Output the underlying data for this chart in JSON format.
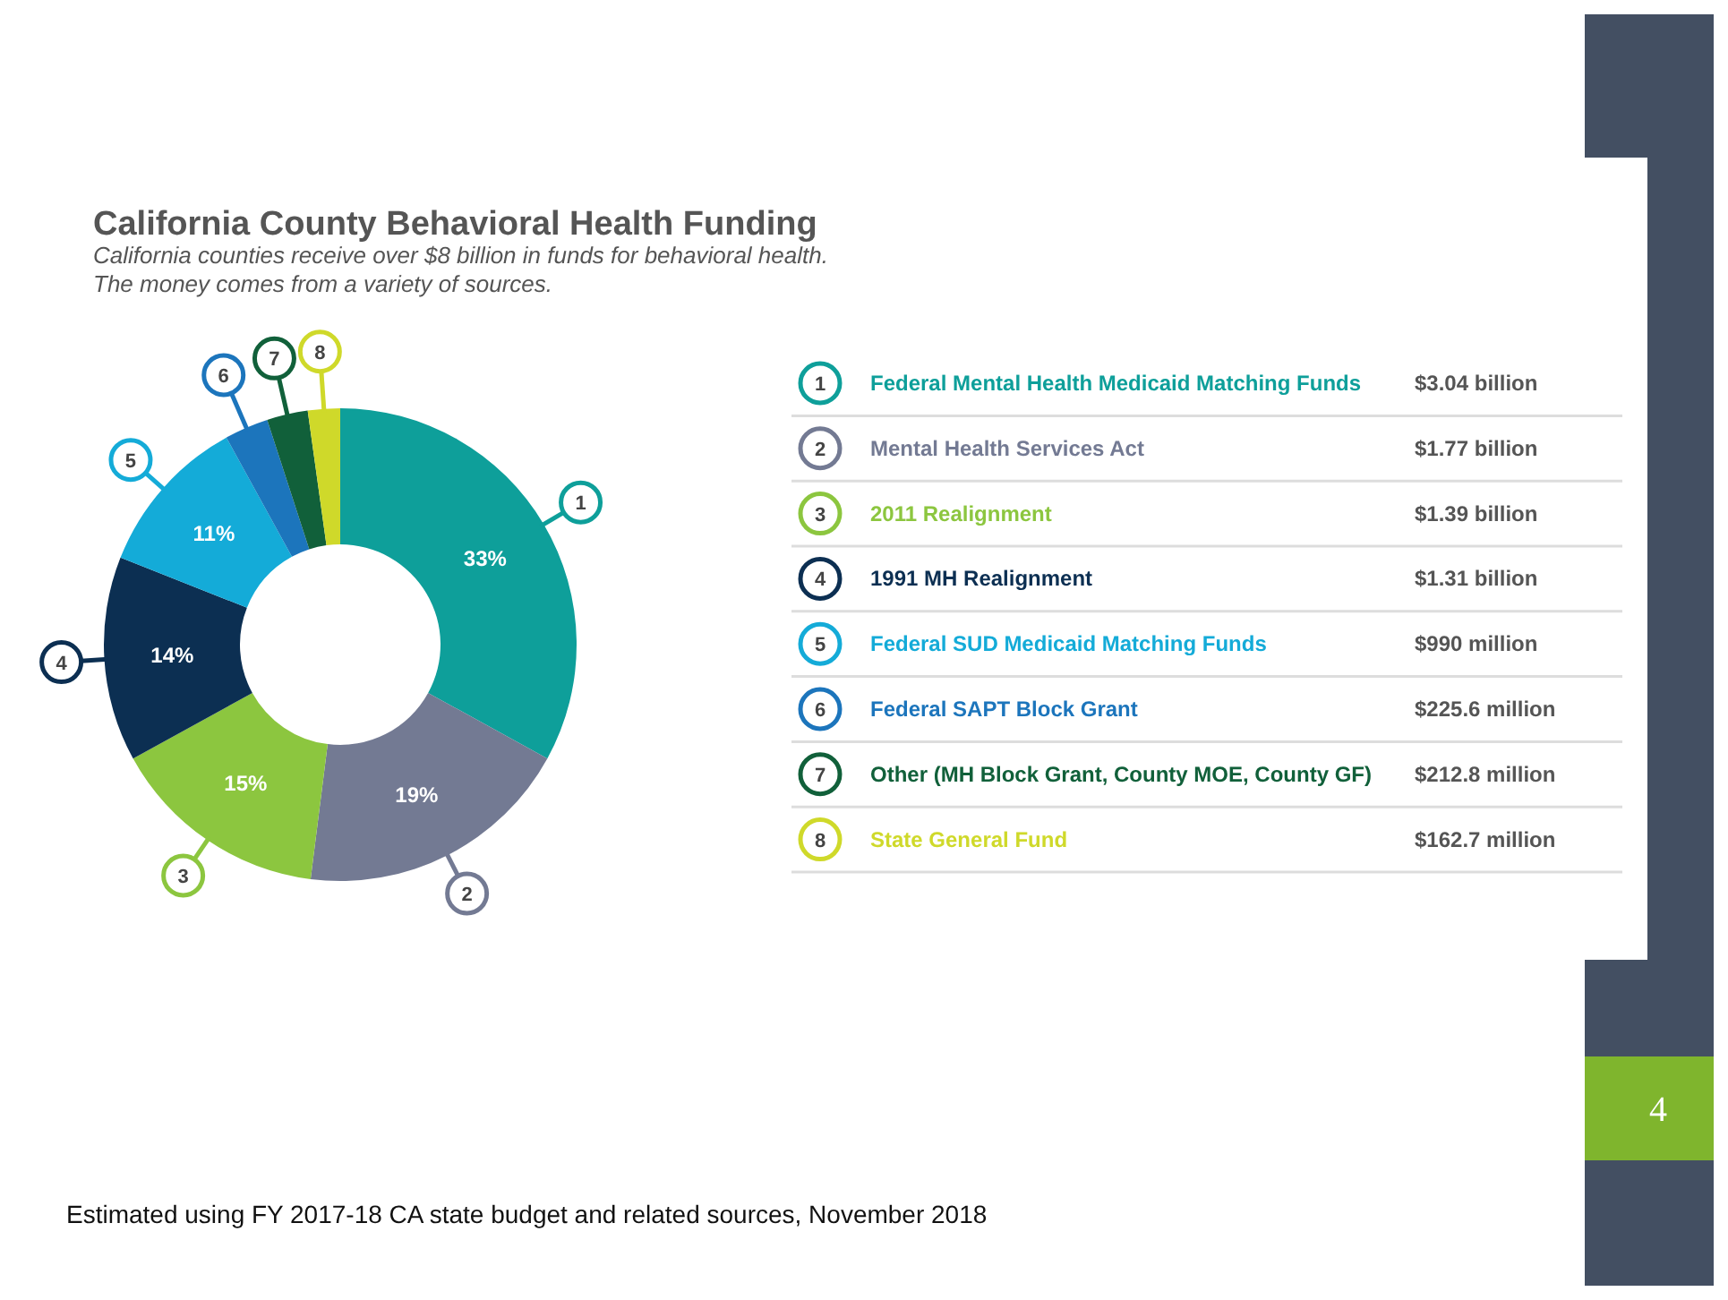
{
  "chart_data": {
    "type": "donut",
    "title": "California County Behavioral Health Funding",
    "subtitle": "California counties receive over $8 billion in funds for behavioral health.\nThe money comes from a variety of sources.",
    "categories": [
      "Federal Mental Health Medicaid Matching Funds",
      "Mental Health Services Act",
      "2011 Realignment",
      "1991 MH Realignment",
      "Federal SUD Medicaid Matching Funds",
      "Federal SAPT Block Grant",
      "Other (MH Block Grant, County MOE, County GF)",
      "State General Fund"
    ],
    "values": [
      33,
      19,
      15,
      14,
      11,
      3.0,
      2.8,
      2.2
    ],
    "value_labels": [
      "33%",
      "19%",
      "15%",
      "14%",
      "11%",
      null,
      null,
      null
    ],
    "colors": [
      "#0e9f9a",
      "#737a93",
      "#8cc63f",
      "#0c2f52",
      "#14abd8",
      "#1c75bc",
      "#11603a",
      "#cfd92a"
    ],
    "annotations": [
      {
        "text": "1",
        "x": "Federal Mental Health Medicaid Matching Funds"
      },
      {
        "text": "2",
        "x": "Mental Health Services Act"
      },
      {
        "text": "3",
        "x": "2011 Realignment"
      },
      {
        "text": "4",
        "x": "1991 MH Realignment"
      },
      {
        "text": "5",
        "x": "Federal SUD Medicaid Matching Funds"
      },
      {
        "text": "6",
        "x": "Federal SAPT Block Grant"
      },
      {
        "text": "7",
        "x": "Other (MH Block Grant, County MOE, County GF)"
      },
      {
        "text": "8",
        "x": "State General Fund"
      },
      {
        "text": "$3.04 billion",
        "x": "Federal Mental Health Medicaid Matching Funds"
      },
      {
        "text": "$1.77 billion",
        "x": "Mental Health Services Act"
      },
      {
        "text": "$1.39 billion",
        "x": "2011 Realignment"
      },
      {
        "text": "$1.31 billion",
        "x": "1991 MH Realignment"
      },
      {
        "text": "$990 million",
        "x": "Federal SUD Medicaid Matching Funds"
      },
      {
        "text": "$225.6 million",
        "x": "Federal SAPT Block Grant"
      },
      {
        "text": "$212.8 million",
        "x": "Other (MH Block Grant, County MOE, County GF)"
      },
      {
        "text": "$162.7 million",
        "x": "State General Fund"
      },
      "Estimated using FY 2017-18 CA state budget and related sources, November 2018",
      "4"
    ],
    "legend": "right"
  }
}
